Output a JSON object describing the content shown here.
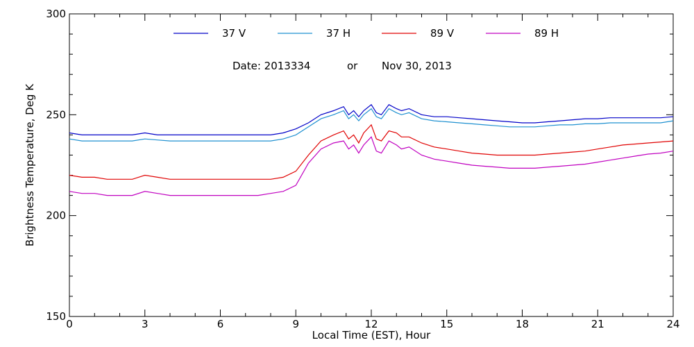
{
  "chart_data": {
    "type": "line",
    "title": "",
    "xlabel": "Local Time (EST), Hour",
    "ylabel": "Brightness Temperature, Deg K",
    "xlim": [
      0,
      24
    ],
    "ylim": [
      150,
      300
    ],
    "xticks": [
      0,
      3,
      6,
      9,
      12,
      15,
      18,
      21,
      24
    ],
    "yticks": [
      150,
      200,
      250,
      300
    ],
    "x_minor_step": 1,
    "y_minor_step": 10,
    "grid": false,
    "legend_position": "top",
    "annotation": {
      "date_label": "Date: 2013334",
      "or_label": "or",
      "date_text": "Nov 30, 2013"
    },
    "x": [
      0,
      0.5,
      1,
      1.5,
      2,
      2.5,
      3,
      3.5,
      4,
      4.5,
      5,
      5.5,
      6,
      6.5,
      7,
      7.5,
      8,
      8.5,
      9,
      9.5,
      10,
      10.5,
      10.9,
      11.1,
      11.3,
      11.5,
      11.7,
      12,
      12.2,
      12.4,
      12.7,
      13,
      13.2,
      13.5,
      14,
      14.5,
      15,
      15.5,
      16,
      16.5,
      17,
      17.5,
      18,
      18.5,
      19,
      19.5,
      20,
      20.5,
      21,
      21.5,
      22,
      22.5,
      23,
      23.5,
      24
    ],
    "series": [
      {
        "name": "37 V",
        "color": "#0000c8",
        "values": [
          241,
          240,
          240,
          240,
          240,
          240,
          241,
          240,
          240,
          240,
          240,
          240,
          240,
          240,
          240,
          240,
          240,
          241,
          243,
          246,
          250,
          252,
          254,
          250,
          252,
          249,
          252,
          255,
          251,
          250,
          255,
          253,
          252,
          253,
          250,
          249,
          249,
          248.5,
          248,
          247.5,
          247,
          246.5,
          246,
          246,
          246.5,
          247,
          247.5,
          248,
          248,
          248.5,
          248.5,
          248.5,
          248.5,
          248.5,
          249
        ]
      },
      {
        "name": "37 H",
        "color": "#1e90d0",
        "values": [
          238,
          237,
          237,
          237,
          237,
          237,
          238,
          237.5,
          237,
          237,
          237,
          237,
          237,
          237,
          237,
          237,
          237,
          238,
          240,
          244,
          248,
          250,
          252,
          248,
          250,
          247,
          250,
          253,
          249,
          248,
          253,
          251,
          250,
          251,
          248,
          247,
          246.5,
          246,
          245.5,
          245,
          244.5,
          244,
          244,
          244,
          244.5,
          245,
          245,
          245.5,
          245.5,
          246,
          246,
          246,
          246,
          246,
          247
        ]
      },
      {
        "name": "89 V",
        "color": "#e00000",
        "values": [
          220,
          219,
          219,
          218,
          218,
          218,
          220,
          219,
          218,
          218,
          218,
          218,
          218,
          218,
          218,
          218,
          218,
          219,
          222,
          230,
          237,
          240,
          242,
          238,
          240,
          236,
          241,
          245,
          238,
          237,
          242,
          241,
          239,
          239,
          236,
          234,
          233,
          232,
          231,
          230.5,
          230,
          230,
          230,
          230,
          230.5,
          231,
          231.5,
          232,
          233,
          234,
          235,
          235.5,
          236,
          236.5,
          237
        ]
      },
      {
        "name": "89 H",
        "color": "#c000c0",
        "values": [
          212,
          211,
          211,
          210,
          210,
          210,
          212,
          211,
          210,
          210,
          210,
          210,
          210,
          210,
          210,
          210,
          211,
          212,
          215,
          226,
          233,
          236,
          237,
          233,
          235,
          231,
          235,
          239,
          232,
          231,
          237,
          235,
          233,
          234,
          230,
          228,
          227,
          226,
          225,
          224.5,
          224,
          223.5,
          223.5,
          223.5,
          224,
          224.5,
          225,
          225.5,
          226.5,
          227.5,
          228.5,
          229.5,
          230.5,
          231,
          232
        ]
      }
    ]
  }
}
